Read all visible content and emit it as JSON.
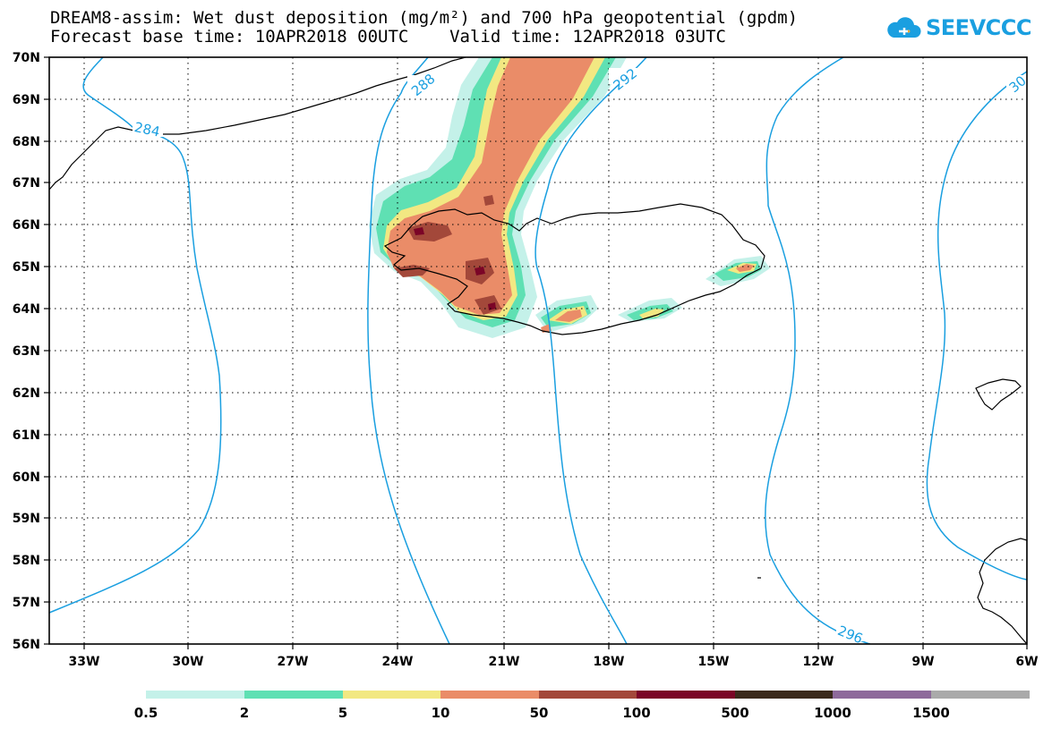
{
  "title": {
    "line1": "DREAM8-assim: Wet dust deposition (mg/m²) and 700 hPa geopotential (gpdm)",
    "line2": "Forecast base time: 10APR2018 00UTC    Valid time: 12APR2018 03UTC"
  },
  "logo": {
    "text": "SEEVCCC",
    "icon": "cloud-icon",
    "color": "#1a9fe0"
  },
  "axes": {
    "lat_labels": [
      "70N",
      "69N",
      "68N",
      "67N",
      "66N",
      "65N",
      "64N",
      "63N",
      "62N",
      "61N",
      "60N",
      "59N",
      "58N",
      "57N",
      "56N"
    ],
    "lon_labels": [
      "33W",
      "30W",
      "27W",
      "24W",
      "21W",
      "18W",
      "15W",
      "12W",
      "9W",
      "6W"
    ]
  },
  "contours": {
    "labels": [
      "284",
      "288",
      "292",
      "296",
      "30"
    ],
    "color": "#1a9fe0"
  },
  "legend": {
    "colors": [
      "#c4f1e9",
      "#5fe0b3",
      "#f2e882",
      "#ea8c68",
      "#a3483a",
      "#7b0527",
      "#3b2a1c",
      "#8e6a9b",
      "#aaaaaa"
    ],
    "labels": [
      "0.5",
      "2",
      "5",
      "10",
      "50",
      "100",
      "500",
      "1000",
      "1500"
    ]
  }
}
